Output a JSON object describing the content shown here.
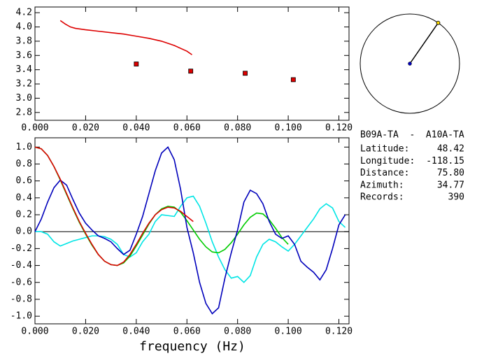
{
  "chart_data": [
    {
      "type": "line",
      "xlim": [
        0,
        0.124
      ],
      "ylim": [
        2.69,
        4.28
      ],
      "xticks": [
        {
          "value": 0,
          "label": "0.000"
        },
        {
          "value": 0.02,
          "label": "0.020"
        },
        {
          "value": 0.04,
          "label": "0.040"
        },
        {
          "value": 0.06,
          "label": "0.060"
        },
        {
          "value": 0.08,
          "label": "0.080"
        },
        {
          "value": 0.1,
          "label": "0.100"
        },
        {
          "value": 0.12,
          "label": "0.120"
        }
      ],
      "yticks": [
        2.8,
        {
          "value": 3.0,
          "label": "3.0"
        },
        3.2,
        3.4,
        3.6,
        3.8,
        {
          "value": 4.0,
          "label": "4.0"
        },
        4.2
      ],
      "series": [
        {
          "color": "#dd0000",
          "mode": "line",
          "x": [
            0.01,
            0.012,
            0.014,
            0.016,
            0.02,
            0.025,
            0.03,
            0.035,
            0.04,
            0.045,
            0.05,
            0.055,
            0.06,
            0.062
          ],
          "values": [
            4.09,
            4.04,
            4.0,
            3.98,
            3.96,
            3.94,
            3.92,
            3.9,
            3.87,
            3.84,
            3.8,
            3.74,
            3.66,
            3.61
          ]
        },
        {
          "color": "#dd0000",
          "mode": "markers",
          "x": [
            0.04,
            0.0615,
            0.083,
            0.102
          ],
          "values": [
            3.48,
            3.38,
            3.35,
            3.26
          ]
        }
      ]
    },
    {
      "type": "line",
      "x_label": "frequency (Hz)",
      "xlim": [
        0,
        0.124
      ],
      "ylim": [
        -1.09,
        1.11
      ],
      "xticks": [
        {
          "value": 0,
          "label": "0.000"
        },
        {
          "value": 0.02,
          "label": "0.020"
        },
        {
          "value": 0.04,
          "label": "0.040"
        },
        {
          "value": 0.06,
          "label": "0.060"
        },
        {
          "value": 0.08,
          "label": "0.080"
        },
        {
          "value": 0.1,
          "label": "0.100"
        },
        {
          "value": 0.12,
          "label": "0.120"
        }
      ],
      "yticks": [
        {
          "value": 1.0,
          "label": "1.0"
        },
        0.8,
        0.6,
        0.4,
        0.2,
        {
          "value": 0,
          "label": "0.0"
        },
        -0.2,
        -0.4,
        -0.6,
        -0.8,
        {
          "value": -1.0,
          "label": "-1.0"
        }
      ],
      "zero_tick": 5,
      "x": [
        0,
        0.0025,
        0.005,
        0.0075,
        0.01,
        0.0125,
        0.015,
        0.0175,
        0.02,
        0.0225,
        0.025,
        0.0275,
        0.03,
        0.0325,
        0.035,
        0.0375,
        0.04,
        0.0425,
        0.045,
        0.0475,
        0.05,
        0.0525,
        0.055,
        0.0575,
        0.06,
        0.0625,
        0.065,
        0.0675,
        0.07,
        0.0725,
        0.075,
        0.0775,
        0.08,
        0.0825,
        0.085,
        0.0875,
        0.09,
        0.0925,
        0.095,
        0.0975,
        0.1,
        0.1025,
        0.105,
        0.1075,
        0.11,
        0.1125,
        0.115,
        0.1175,
        0.12,
        0.1225
      ],
      "series": [
        {
          "color": "#00e5e5",
          "values": [
            0.0,
            0.0,
            -0.03,
            -0.12,
            -0.17,
            -0.14,
            -0.11,
            -0.09,
            -0.07,
            -0.05,
            -0.05,
            -0.06,
            -0.09,
            -0.15,
            -0.27,
            -0.3,
            -0.25,
            -0.12,
            -0.03,
            0.12,
            0.2,
            0.19,
            0.18,
            0.3,
            0.4,
            0.42,
            0.3,
            0.1,
            -0.12,
            -0.3,
            -0.45,
            -0.55,
            -0.53,
            -0.6,
            -0.52,
            -0.3,
            -0.15,
            -0.09,
            -0.12,
            -0.18,
            -0.23,
            -0.15,
            -0.05,
            0.05,
            0.15,
            0.27,
            0.33,
            0.28,
            0.12,
            0.05
          ]
        },
        {
          "color": "#00cc00",
          "values": [
            1.0,
            0.98,
            0.9,
            0.77,
            0.61,
            0.44,
            0.27,
            0.11,
            -0.03,
            -0.16,
            -0.27,
            -0.35,
            -0.39,
            -0.4,
            -0.37,
            -0.29,
            -0.17,
            -0.04,
            0.09,
            0.2,
            0.27,
            0.3,
            0.29,
            0.23,
            0.13,
            0.02,
            -0.09,
            -0.18,
            -0.24,
            -0.25,
            -0.21,
            -0.13,
            -0.03,
            0.08,
            0.17,
            0.22,
            0.21,
            0.14,
            0.04,
            -0.07,
            -0.15,
            null,
            null,
            null,
            null,
            null,
            null,
            null,
            null,
            null
          ]
        },
        {
          "color": "#0000bb",
          "values": [
            0.0,
            0.15,
            0.35,
            0.52,
            0.61,
            0.55,
            0.38,
            0.22,
            0.1,
            0.02,
            -0.05,
            -0.08,
            -0.12,
            -0.2,
            -0.27,
            -0.22,
            -0.03,
            0.18,
            0.45,
            0.72,
            0.93,
            1.0,
            0.85,
            0.5,
            0.05,
            -0.25,
            -0.6,
            -0.85,
            -0.97,
            -0.9,
            -0.55,
            -0.25,
            0.02,
            0.35,
            0.49,
            0.45,
            0.33,
            0.12,
            -0.03,
            -0.08,
            -0.05,
            -0.15,
            -0.35,
            -0.42,
            -0.48,
            -0.57,
            -0.45,
            -0.2,
            0.08,
            0.2
          ]
        },
        {
          "color": "#dd0000",
          "values": [
            1.0,
            0.98,
            0.9,
            0.77,
            0.62,
            0.45,
            0.28,
            0.12,
            -0.02,
            -0.15,
            -0.27,
            -0.35,
            -0.39,
            -0.4,
            -0.36,
            -0.27,
            -0.15,
            -0.02,
            0.1,
            0.2,
            0.26,
            0.29,
            0.28,
            0.24,
            0.18,
            0.12,
            null,
            null,
            null,
            null,
            null,
            null,
            null,
            null,
            null,
            null,
            null,
            null,
            null,
            null,
            null,
            null,
            null,
            null,
            null,
            null,
            null,
            null,
            null,
            null
          ]
        }
      ]
    }
  ],
  "station_info": {
    "pair": "B09A-TA  -  A10A-TA",
    "rows": [
      {
        "label": "Latitude:",
        "value": "48.42"
      },
      {
        "label": "Longitude:",
        "value": "-118.15"
      },
      {
        "label": "Distance:",
        "value": "75.80"
      },
      {
        "label": "Azimuth:",
        "value": "34.77"
      },
      {
        "label": "Records:",
        "value": "390"
      }
    ],
    "azimuth_row": 3
  }
}
